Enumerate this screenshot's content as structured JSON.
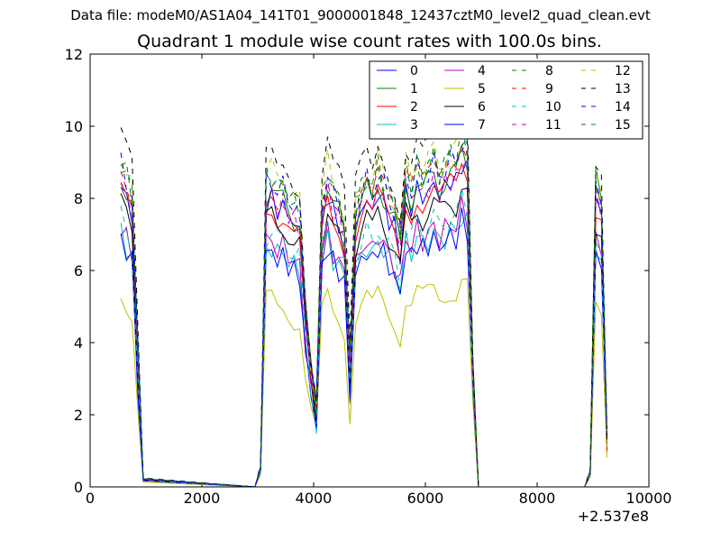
{
  "suptitle": "Data file: modeM0/AS1A04_141T01_9000001848_12437cztM0_level2_quad_clean.evt",
  "chart_data": {
    "type": "line",
    "title": "Quadrant 1 module wise count rates with 100.0s bins.",
    "xlabel": "",
    "ylabel": "",
    "xlim": [
      0,
      10000
    ],
    "ylim": [
      0,
      12
    ],
    "x_offset_label": "+2.537e8",
    "x_ticks": [
      0,
      2000,
      4000,
      6000,
      8000,
      10000
    ],
    "x_tick_labels": [
      "0",
      "2000",
      "4000",
      "6000",
      "8000",
      "10000"
    ],
    "y_ticks": [
      0,
      2,
      4,
      6,
      8,
      10,
      12
    ],
    "y_tick_labels": [
      "0",
      "2",
      "4",
      "6",
      "8",
      "10",
      "12"
    ],
    "grid": false,
    "legend_position": "top-right",
    "legend_columns": 4,
    "base_pattern": {
      "x": [
        550,
        650,
        750,
        850,
        950,
        3050,
        3150,
        3250,
        3350,
        3450,
        3550,
        3650,
        3750,
        3850,
        3950,
        4050,
        4150,
        4250,
        4350,
        4450,
        4550,
        4650,
        4750,
        4850,
        4950,
        5050,
        5150,
        5250,
        5350,
        5450,
        5550,
        5650,
        5750,
        5850,
        5950,
        6050,
        6150,
        6250,
        6350,
        6450,
        6550,
        6650,
        6750,
        6850,
        6950,
        8950,
        9050,
        9150,
        9250
      ],
      "values": [
        8.0,
        7.6,
        7.2,
        3.5,
        0.2,
        0.5,
        7.5,
        7.6,
        7.3,
        7.4,
        7.2,
        6.9,
        6.8,
        4.5,
        3.0,
        2.0,
        7.0,
        7.8,
        7.2,
        7.0,
        6.5,
        3.0,
        6.8,
        7.3,
        7.6,
        7.2,
        7.8,
        7.5,
        7.1,
        6.8,
        6.2,
        7.7,
        7.4,
        7.9,
        7.6,
        7.8,
        8.0,
        7.7,
        7.9,
        8.1,
        8.0,
        8.6,
        8.3,
        3.0,
        0.0,
        0.4,
        7.5,
        7.3,
        1.2
      ]
    },
    "flat_segments": [
      [
        950,
        2950
      ],
      [
        6950,
        8850
      ]
    ],
    "series": [
      {
        "name": "0",
        "color": "#0000ff",
        "dash": "solid",
        "scale": 1.05
      },
      {
        "name": "1",
        "color": "#008000",
        "dash": "solid",
        "scale": 1.08
      },
      {
        "name": "2",
        "color": "#ff0000",
        "dash": "solid",
        "scale": 1.03
      },
      {
        "name": "3",
        "color": "#00bfbf",
        "dash": "solid",
        "scale": 0.88
      },
      {
        "name": "4",
        "color": "#bf00bf",
        "dash": "solid",
        "scale": 0.9
      },
      {
        "name": "5",
        "color": "#bfbf00",
        "dash": "solid",
        "scale": 0.68
      },
      {
        "name": "6",
        "color": "#000000",
        "dash": "solid",
        "scale": 0.98
      },
      {
        "name": "7",
        "color": "#0000ff",
        "dash": "solid",
        "scale": 0.86
      },
      {
        "name": "8",
        "color": "#008000",
        "dash": "dashed",
        "scale": 1.13
      },
      {
        "name": "9",
        "color": "#ff0000",
        "dash": "dashed",
        "scale": 1.1
      },
      {
        "name": "10",
        "color": "#00bfbf",
        "dash": "dashed",
        "scale": 0.93
      },
      {
        "name": "11",
        "color": "#bf00bf",
        "dash": "dashed",
        "scale": 1.06
      },
      {
        "name": "12",
        "color": "#bfbf00",
        "dash": "dashed",
        "scale": 1.16
      },
      {
        "name": "13",
        "color": "#000000",
        "dash": "dashed",
        "scale": 1.23
      },
      {
        "name": "14",
        "color": "#0000ff",
        "dash": "dashed",
        "scale": 1.12
      },
      {
        "name": "15",
        "color": "#008000",
        "dash": "dashed",
        "scale": 1.14
      }
    ]
  }
}
